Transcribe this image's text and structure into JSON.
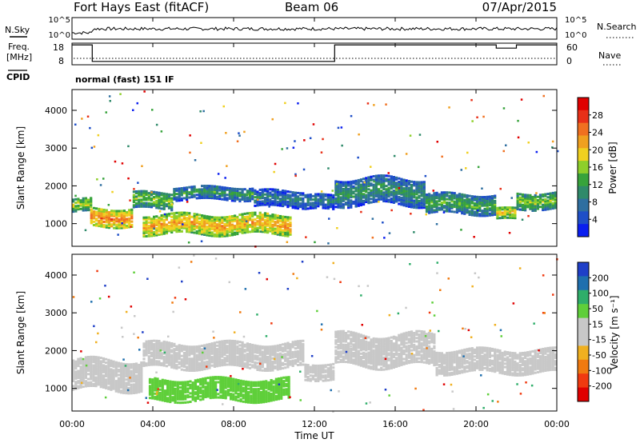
{
  "header": {
    "station": "Fort Hays East (fitACF)",
    "beam": "Beam 06",
    "date": "07/Apr/2015"
  },
  "noise_panel": {
    "left_label": "N.Sky",
    "right_label": "N.Search",
    "left_ticks": [
      "10^5",
      "10^0"
    ],
    "right_ticks": [
      "10^5",
      "10^0"
    ]
  },
  "freq_panel": {
    "left_label_1": "Freq.",
    "left_label_2": "[MHz]",
    "right_label": "Nave",
    "left_ticks": [
      "18",
      "8"
    ],
    "right_ticks": [
      "60",
      "0"
    ],
    "cpid_label": "CPID",
    "cpid_text": "normal (fast) 151 IF",
    "freq_steps": [
      {
        "t0": 0,
        "t1": 1,
        "mhz": 18
      },
      {
        "t0": 1,
        "t1": 13,
        "mhz": 8
      },
      {
        "t0": 13,
        "t1": 21,
        "mhz": 18
      },
      {
        "t0": 21,
        "t1": 22,
        "mhz": 16
      },
      {
        "t0": 22,
        "t1": 24,
        "mhz": 18
      }
    ]
  },
  "colors": {
    "power_scale": [
      "#0a1ef0",
      "#1f4fc8",
      "#2f6fa0",
      "#2f8a6a",
      "#37a33b",
      "#8ecf2a",
      "#f0d020",
      "#f0a020",
      "#f07020",
      "#e83018",
      "#e00000"
    ],
    "velocity_scale": [
      "#e00000",
      "#f03a10",
      "#f07a10",
      "#f0b020",
      "#c8c8c8",
      "#c8c8c8",
      "#5fcf3a",
      "#2fae6a",
      "#1f6fae",
      "#1f3fc8"
    ]
  },
  "chart_data": [
    {
      "type": "heatmap",
      "name": "power",
      "ylabel": "Slant Range [km]",
      "yticks": [
        "1000",
        "2000",
        "3000",
        "4000"
      ],
      "ylim": [
        400,
        4550
      ],
      "colorbar_label": "Power [dB]",
      "colorbar_ticks": [
        "4",
        "8",
        "12",
        "16",
        "20",
        "24",
        "28"
      ],
      "colorbar_range": [
        0,
        32
      ],
      "bands": [
        {
          "t0": 0.0,
          "t1": 0.9,
          "r_center": 1520,
          "r_half": 170,
          "value": 18
        },
        {
          "t0": 0.9,
          "t1": 3.0,
          "r_center": 1200,
          "r_half": 230,
          "value": 24
        },
        {
          "t0": 3.0,
          "t1": 5.0,
          "r_center": 1650,
          "r_half": 220,
          "value": 16
        },
        {
          "t0": 5.0,
          "t1": 9.0,
          "r_center": 1850,
          "r_half": 180,
          "value": 12
        },
        {
          "t0": 9.0,
          "t1": 11.5,
          "r_center": 1700,
          "r_half": 220,
          "value": 10
        },
        {
          "t0": 3.5,
          "t1": 10.8,
          "r_center": 1020,
          "r_half": 260,
          "value": 22
        },
        {
          "t0": 11.5,
          "t1": 13.0,
          "r_center": 1600,
          "r_half": 200,
          "value": 10
        },
        {
          "t0": 13.0,
          "t1": 17.5,
          "r_center": 1900,
          "r_half": 360,
          "value": 12
        },
        {
          "t0": 17.5,
          "t1": 21.0,
          "r_center": 1550,
          "r_half": 250,
          "value": 14
        },
        {
          "t0": 21.0,
          "t1": 22.0,
          "r_center": 1300,
          "r_half": 150,
          "value": 20
        },
        {
          "t0": 22.0,
          "t1": 24.0,
          "r_center": 1650,
          "r_half": 220,
          "value": 16
        }
      ]
    },
    {
      "type": "heatmap",
      "name": "velocity",
      "ylabel": "Slant Range [km]",
      "yticks": [
        "1000",
        "2000",
        "3000",
        "4000"
      ],
      "ylim": [
        400,
        4550
      ],
      "colorbar_label": "Velocity [m s⁻¹]",
      "colorbar_ticks": [
        "200",
        "100",
        "50",
        "15",
        "-15",
        "-50",
        "-100",
        "-200"
      ],
      "colorbar_range": [
        -250,
        250
      ],
      "bands": [
        {
          "t0": 0.0,
          "t1": 3.5,
          "r_center": 1400,
          "r_half": 400,
          "value": 0
        },
        {
          "t0": 3.5,
          "t1": 11.5,
          "r_center": 1900,
          "r_half": 320,
          "value": 0
        },
        {
          "t0": 3.8,
          "t1": 10.8,
          "r_center": 1000,
          "r_half": 280,
          "value": 70
        },
        {
          "t0": 11.5,
          "t1": 13.0,
          "r_center": 1500,
          "r_half": 220,
          "value": 0
        },
        {
          "t0": 13.0,
          "t1": 18.0,
          "r_center": 2050,
          "r_half": 420,
          "value": 0
        },
        {
          "t0": 18.0,
          "t1": 24.0,
          "r_center": 1750,
          "r_half": 300,
          "value": 0
        }
      ]
    }
  ],
  "x_axis": {
    "label": "Time UT",
    "ticks": [
      "00:00",
      "04:00",
      "08:00",
      "12:00",
      "16:00",
      "20:00",
      "00:00"
    ],
    "range": [
      0,
      24
    ]
  }
}
